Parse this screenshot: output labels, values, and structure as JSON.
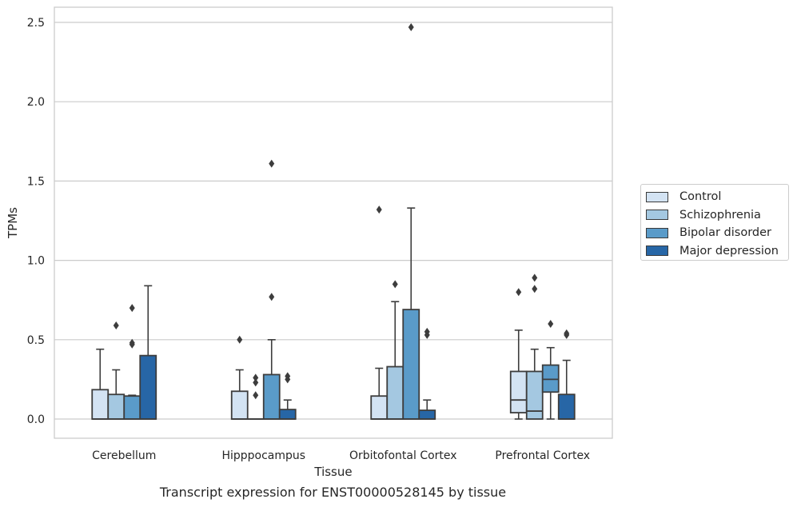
{
  "chart_data": {
    "type": "box",
    "xlabel": "Tissue",
    "ylabel": "TPMs",
    "ylim": [
      -0.12,
      2.6
    ],
    "yticks": [
      0.0,
      0.5,
      1.0,
      1.5,
      2.0,
      2.5
    ],
    "ytick_labels": [
      "0.0",
      "0.5",
      "1.0",
      "1.5",
      "2.0",
      "2.5"
    ],
    "grid": "horizontal",
    "legend_position": "right, outside plot",
    "categories": [
      "Cerebellum",
      "Hipppocampus",
      "Orbitofontal Cortex",
      "Prefrontal Cortex"
    ],
    "series": [
      {
        "name": "Control",
        "color": "#d3e3f3",
        "boxes": [
          {
            "q1": 0.0,
            "median": 0.0,
            "q3": 0.185,
            "whisker_low": 0.0,
            "whisker_high": 0.44,
            "outliers": []
          },
          {
            "q1": 0.0,
            "median": 0.0,
            "q3": 0.175,
            "whisker_low": 0.0,
            "whisker_high": 0.31,
            "outliers": [
              0.5
            ]
          },
          {
            "q1": 0.0,
            "median": 0.0,
            "q3": 0.145,
            "whisker_low": 0.0,
            "whisker_high": 0.32,
            "outliers": [
              1.32
            ]
          },
          {
            "q1": 0.04,
            "median": 0.12,
            "q3": 0.3,
            "whisker_low": 0.0,
            "whisker_high": 0.56,
            "outliers": [
              0.8
            ]
          }
        ]
      },
      {
        "name": "Schizophrenia",
        "color": "#a4c8e1",
        "boxes": [
          {
            "q1": 0.0,
            "median": 0.0,
            "q3": 0.155,
            "whisker_low": 0.0,
            "whisker_high": 0.31,
            "outliers": [
              0.59
            ]
          },
          {
            "q1": 0.0,
            "median": 0.0,
            "q3": 0.0,
            "whisker_low": 0.0,
            "whisker_high": 0.0,
            "outliers": [
              0.15,
              0.23,
              0.26
            ]
          },
          {
            "q1": 0.0,
            "median": 0.0,
            "q3": 0.33,
            "whisker_low": 0.0,
            "whisker_high": 0.74,
            "outliers": [
              0.85
            ]
          },
          {
            "q1": 0.0,
            "median": 0.05,
            "q3": 0.3,
            "whisker_low": 0.0,
            "whisker_high": 0.44,
            "outliers": [
              0.82,
              0.89
            ]
          }
        ]
      },
      {
        "name": "Bipolar disorder",
        "color": "#5a9bc9",
        "boxes": [
          {
            "q1": 0.0,
            "median": 0.0,
            "q3": 0.145,
            "whisker_low": 0.0,
            "whisker_high": 0.15,
            "outliers": [
              0.47,
              0.48,
              0.7
            ]
          },
          {
            "q1": 0.0,
            "median": 0.0,
            "q3": 0.28,
            "whisker_low": 0.0,
            "whisker_high": 0.5,
            "outliers": [
              0.77,
              1.61
            ]
          },
          {
            "q1": 0.0,
            "median": 0.0,
            "q3": 0.69,
            "whisker_low": 0.0,
            "whisker_high": 1.33,
            "outliers": [
              2.47
            ]
          },
          {
            "q1": 0.17,
            "median": 0.25,
            "q3": 0.34,
            "whisker_low": 0.0,
            "whisker_high": 0.45,
            "outliers": [
              0.6
            ]
          }
        ]
      },
      {
        "name": "Major depression",
        "color": "#2766a6",
        "boxes": [
          {
            "q1": 0.0,
            "median": 0.0,
            "q3": 0.4,
            "whisker_low": 0.0,
            "whisker_high": 0.84,
            "outliers": []
          },
          {
            "q1": 0.0,
            "median": 0.0,
            "q3": 0.06,
            "whisker_low": 0.0,
            "whisker_high": 0.12,
            "outliers": [
              0.25,
              0.27
            ]
          },
          {
            "q1": 0.0,
            "median": 0.0,
            "q3": 0.055,
            "whisker_low": 0.0,
            "whisker_high": 0.12,
            "outliers": [
              0.53,
              0.55
            ]
          },
          {
            "q1": 0.0,
            "median": 0.0,
            "q3": 0.155,
            "whisker_low": 0.0,
            "whisker_high": 0.37,
            "outliers": [
              0.53,
              0.54
            ]
          }
        ]
      }
    ]
  },
  "caption": "Transcript expression for ENST00000528145 by tissue",
  "legend": {
    "items": [
      "Control",
      "Schizophrenia",
      "Bipolar disorder",
      "Major depression"
    ]
  }
}
